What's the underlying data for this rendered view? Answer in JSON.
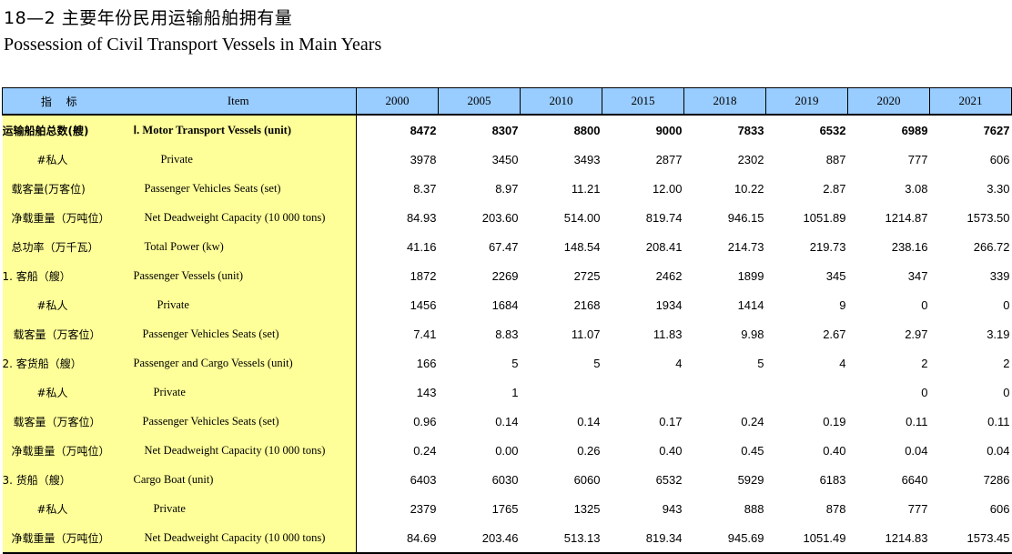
{
  "title_cn": "18—2 主要年份民用运输船舶拥有量",
  "title_en": "Possession of Civil Transport Vessels in Main Years",
  "header": {
    "cn": "指 标",
    "item": "Item",
    "years": [
      "2000",
      "2005",
      "2010",
      "2015",
      "2018",
      "2019",
      "2020",
      "2021"
    ]
  },
  "rows": [
    {
      "cn": "运输船舶总数(艘)",
      "en": "Ⅰ. Motor Transport Vessels (unit)",
      "values": [
        "8472",
        "8307",
        "8800",
        "9000",
        "7833",
        "6532",
        "6989",
        "7627"
      ]
    },
    {
      "cn": "#私人",
      "en": "Private",
      "values": [
        "3978",
        "3450",
        "3493",
        "2877",
        "2302",
        "887",
        "777",
        "606"
      ]
    },
    {
      "cn": "载客量(万客位)",
      "en": "Passenger Vehicles Seats (set)",
      "values": [
        "8.37",
        "8.97",
        "11.21",
        "12.00",
        "10.22",
        "2.87",
        "3.08",
        "3.30"
      ]
    },
    {
      "cn": "净载重量（万吨位）",
      "en": "Net Deadweight Capacity (10 000 tons)",
      "values": [
        "84.93",
        "203.60",
        "514.00",
        "819.74",
        "946.15",
        "1051.89",
        "1214.87",
        "1573.50"
      ]
    },
    {
      "cn": "总功率（万千瓦）",
      "en": "Total Power (kw)",
      "values": [
        "41.16",
        "67.47",
        "148.54",
        "208.41",
        "214.73",
        "219.73",
        "238.16",
        "266.72"
      ]
    },
    {
      "cn": "1. 客船（艘）",
      "en": "Passenger Vessels (unit)",
      "values": [
        "1872",
        "2269",
        "2725",
        "2462",
        "1899",
        "345",
        "347",
        "339"
      ]
    },
    {
      "cn": "#私人",
      "en": "Private",
      "values": [
        "1456",
        "1684",
        "2168",
        "1934",
        "1414",
        "9",
        "0",
        "0"
      ]
    },
    {
      "cn": "载客量（万客位）",
      "en": "Passenger Vehicles Seats (set)",
      "values": [
        "7.41",
        "8.83",
        "11.07",
        "11.83",
        "9.98",
        "2.67",
        "2.97",
        "3.19"
      ]
    },
    {
      "cn": "2. 客货船（艘）",
      "en": "Passenger and Cargo Vessels (unit)",
      "values": [
        "166",
        "5",
        "5",
        "4",
        "5",
        "4",
        "2",
        "2"
      ]
    },
    {
      "cn": "#私人",
      "en": "Private",
      "values": [
        "143",
        "1",
        "",
        "",
        "",
        "",
        "0",
        "0"
      ]
    },
    {
      "cn": "载客量（万客位）",
      "en": "Passenger Vehicles Seats (set)",
      "values": [
        "0.96",
        "0.14",
        "0.14",
        "0.17",
        "0.24",
        "0.19",
        "0.11",
        "0.11"
      ]
    },
    {
      "cn": "净载重量（万吨位）",
      "en": "Net Deadweight Capacity (10 000 tons)",
      "values": [
        "0.24",
        "0.00",
        "0.26",
        "0.40",
        "0.45",
        "0.40",
        "0.04",
        "0.04"
      ]
    },
    {
      "cn": "3. 货船（艘）",
      "en": "Cargo Boat (unit)",
      "values": [
        "6403",
        "6030",
        "6060",
        "6532",
        "5929",
        "6183",
        "6640",
        "7286"
      ]
    },
    {
      "cn": "#私人",
      "en": "Private",
      "values": [
        "2379",
        "1765",
        "1325",
        "943",
        "888",
        "878",
        "777",
        "606"
      ]
    },
    {
      "cn": "净载重量（万吨位）",
      "en": "Net Deadweight Capacity (10 000 tons)",
      "values": [
        "84.69",
        "203.46",
        "513.13",
        "819.34",
        "945.69",
        "1051.49",
        "1214.83",
        "1573.45"
      ]
    }
  ],
  "colors": {
    "header_bg": "#99ccff",
    "label_bg": "#ffff99"
  }
}
